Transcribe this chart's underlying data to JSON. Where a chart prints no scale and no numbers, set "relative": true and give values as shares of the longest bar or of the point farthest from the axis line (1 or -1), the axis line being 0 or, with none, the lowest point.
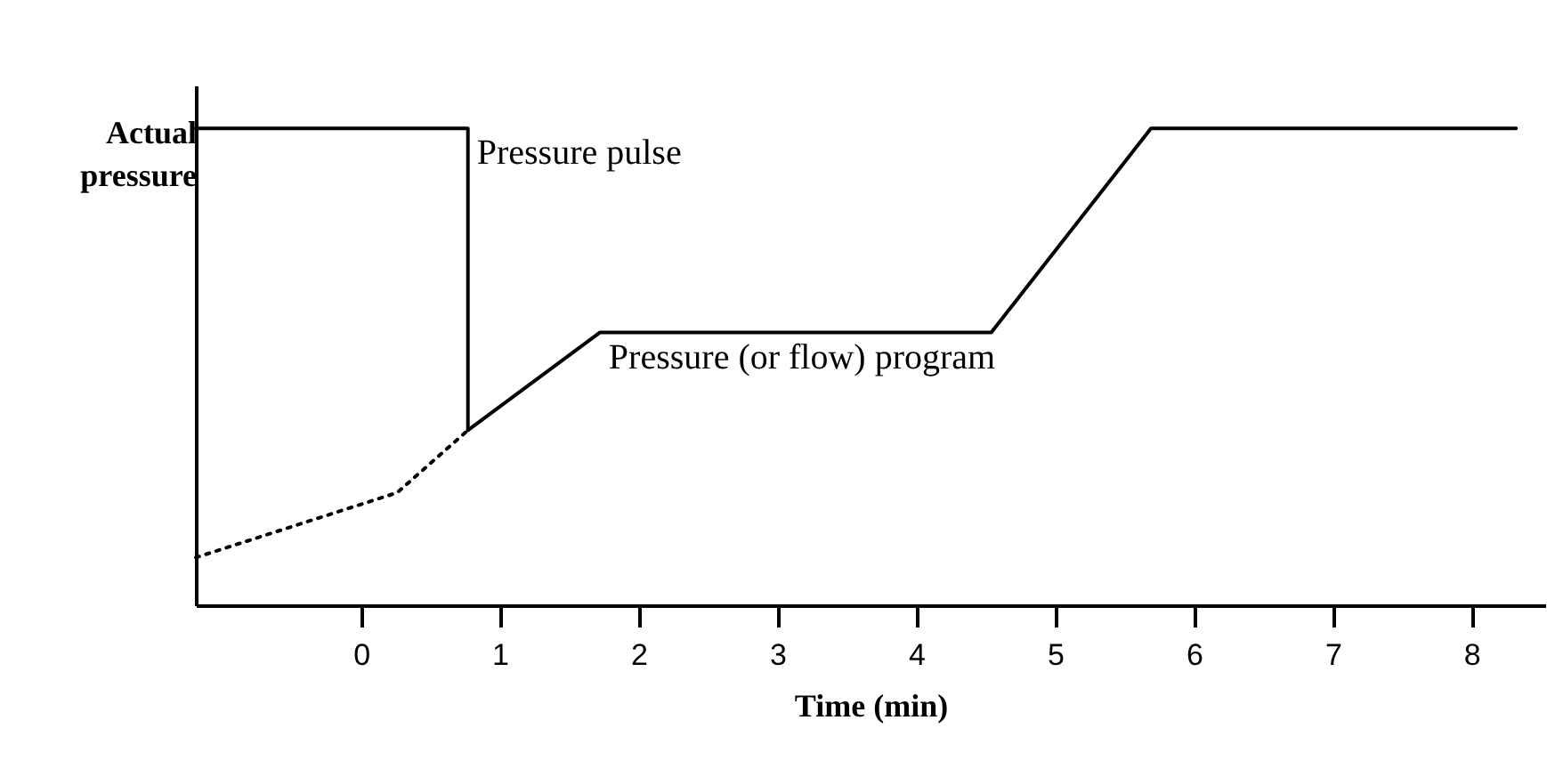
{
  "chart_data": {
    "type": "line",
    "relative": true,
    "xlabel": "Time (min)",
    "ylabel": "Actual pressure",
    "xlim": [
      -1.19,
      8.53
    ],
    "xticks": [
      0,
      1,
      2,
      3,
      4,
      5,
      6,
      7,
      8
    ],
    "grid": false,
    "marker": "none",
    "series": [
      {
        "name": "Pressure pulse",
        "color": "#000000",
        "line_style": "solid",
        "x": [
          -1.19,
          0.77,
          0.77
        ],
        "values": [
          1,
          1,
          0.367
        ]
      },
      {
        "name": "Pressure (or flow) program",
        "color": "#000000",
        "line_style": "solid",
        "x": [
          0.77,
          1.72,
          4.54,
          5.69,
          8.32
        ],
        "values": [
          0.367,
          0.572,
          0.572,
          1,
          1
        ]
      },
      {
        "color": "#000000",
        "line_style": "dotted",
        "x": [
          -1.19,
          0.26,
          0.77
        ],
        "values": [
          0.1,
          0.236,
          0.367
        ]
      }
    ]
  }
}
